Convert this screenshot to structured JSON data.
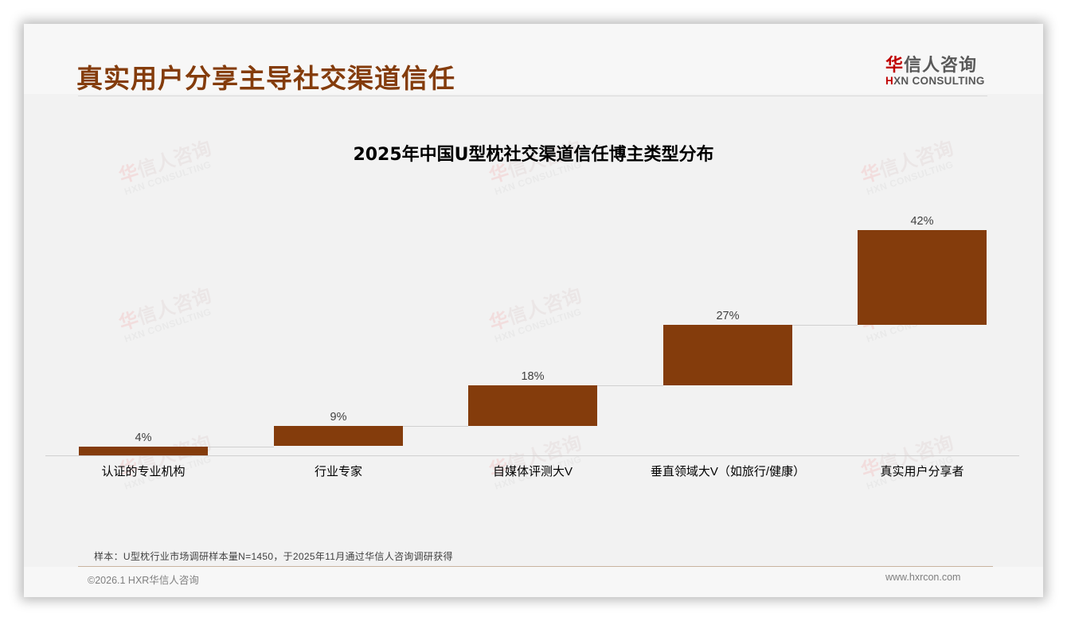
{
  "header": {
    "title": "真实用户分享主导社交渠道信任",
    "logo": {
      "cn_mark": "华",
      "cn_rest": "信人咨询",
      "en_mark": "H",
      "en_rest": "XN CONSULTING"
    }
  },
  "watermark": {
    "cn_mark": "华",
    "cn_rest": "信人咨询",
    "en": "HXN CONSULTING"
  },
  "chart_data": {
    "type": "bar",
    "subtype": "waterfall",
    "title": "2025年中国U型枕社交渠道信任博主类型分布",
    "categories": [
      "认证的专业机构",
      "行业专家",
      "自媒体评测大V",
      "垂直领域大V（如旅行/健康）",
      "真实用户分享者"
    ],
    "values": [
      4,
      9,
      18,
      27,
      42
    ],
    "value_labels": [
      "4%",
      "9%",
      "18%",
      "27%",
      "42%"
    ],
    "cumulative": [
      4,
      13,
      31,
      58,
      100
    ],
    "unit": "%",
    "xlabel": "",
    "ylabel": "",
    "ylim": [
      0,
      100
    ],
    "grid": false,
    "legend": null,
    "bar_color": "#843c0c"
  },
  "footer": {
    "source": "样本：U型枕行业市场调研样本量N=1450，于2025年11月通过华信人咨询调研获得",
    "copyright": "©2026.1 HXR华信人咨询",
    "website": "www.hxrcon.com"
  },
  "colors": {
    "title": "#843c0c",
    "bar": "#843c0c",
    "logo_red": "#c00000",
    "background": "#f2f2f2"
  }
}
